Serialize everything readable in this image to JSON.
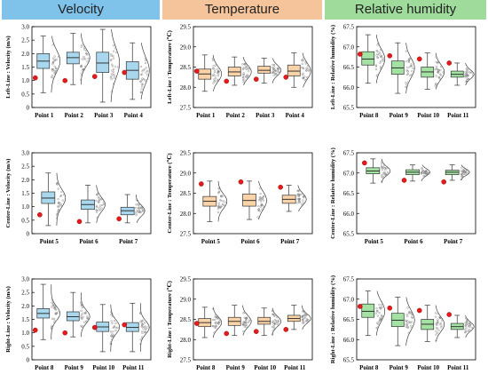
{
  "headers": [
    {
      "label": "Velocity",
      "color": "#7fc3ea"
    },
    {
      "label": "Temperature",
      "color": "#f6c49a"
    },
    {
      "label": "Relative humidity",
      "color": "#9fdc9b"
    }
  ],
  "colors": {
    "velocity": "#a9d8ee",
    "temperature": "#fbd3a8",
    "humidity": "#a4e2a4",
    "marker": "#e41a1c"
  },
  "chart_data": [
    {
      "type": "box",
      "panel": "velocity-left",
      "ylabel": "Left-Line : Velocity (m/s)",
      "ylim": [
        0,
        3.0
      ],
      "yticks": [
        0,
        0.5,
        1.0,
        1.5,
        2.0,
        2.5,
        3.0
      ],
      "ytick_labels": [
        "0",
        "0.5",
        "1.0",
        "1.5",
        "2.0",
        "2.5",
        "3.0"
      ],
      "categories": [
        "Point 1",
        "Point 2",
        "Point 3",
        "Point 4"
      ],
      "boxes": [
        {
          "min": 0.55,
          "q1": 1.45,
          "median": 1.72,
          "q3": 2.0,
          "max": 2.65,
          "marker": 1.1
        },
        {
          "min": 0.85,
          "q1": 1.62,
          "median": 1.85,
          "q3": 2.05,
          "max": 2.75,
          "marker": 1.0
        },
        {
          "min": 0.2,
          "q1": 1.3,
          "median": 1.65,
          "q3": 2.05,
          "max": 2.9,
          "marker": 1.15
        },
        {
          "min": 0.3,
          "q1": 1.05,
          "median": 1.38,
          "q3": 1.7,
          "max": 2.4,
          "marker": 1.3
        }
      ]
    },
    {
      "type": "box",
      "panel": "temperature-left",
      "ylabel": "Left-Line : Temperature (℃)",
      "ylim": [
        27.5,
        29.5
      ],
      "yticks": [
        27.5,
        28.0,
        28.5,
        29.0,
        29.5
      ],
      "ytick_labels": [
        "27.5",
        "28.0",
        "28.5",
        "29.0",
        "29.5"
      ],
      "categories": [
        "Point 1",
        "Point 2",
        "Point 3",
        "Point 4"
      ],
      "boxes": [
        {
          "min": 27.9,
          "q1": 28.2,
          "median": 28.33,
          "q3": 28.45,
          "max": 28.8,
          "marker": 28.4
        },
        {
          "min": 28.05,
          "q1": 28.28,
          "median": 28.38,
          "q3": 28.5,
          "max": 28.75,
          "marker": 28.15
        },
        {
          "min": 28.1,
          "q1": 28.35,
          "median": 28.42,
          "q3": 28.52,
          "max": 28.72,
          "marker": 28.2
        },
        {
          "min": 28.0,
          "q1": 28.28,
          "median": 28.4,
          "q3": 28.55,
          "max": 28.85,
          "marker": 28.25
        }
      ]
    },
    {
      "type": "box",
      "panel": "humidity-left",
      "ylabel": "Left-Line : Relative humidity (%)",
      "ylim": [
        65.5,
        67.5
      ],
      "yticks": [
        65.5,
        66.0,
        66.5,
        67.0,
        67.5
      ],
      "ytick_labels": [
        "65.5",
        "66.0",
        "66.5",
        "67.0",
        "67.5"
      ],
      "categories": [
        "Point 8",
        "Point 9",
        "Point 10",
        "Point 11"
      ],
      "boxes": [
        {
          "min": 66.1,
          "q1": 66.55,
          "median": 66.7,
          "q3": 66.88,
          "max": 67.3,
          "marker": 66.82
        },
        {
          "min": 65.85,
          "q1": 66.32,
          "median": 66.48,
          "q3": 66.65,
          "max": 67.1,
          "marker": 66.78
        },
        {
          "min": 65.95,
          "q1": 66.25,
          "median": 66.38,
          "q3": 66.5,
          "max": 66.85,
          "marker": 66.7
        },
        {
          "min": 66.05,
          "q1": 66.25,
          "median": 66.32,
          "q3": 66.4,
          "max": 66.6,
          "marker": 66.6
        }
      ]
    },
    {
      "type": "box",
      "panel": "velocity-center",
      "ylabel": "Center-Line : Velocity (m/s)",
      "ylim": [
        0,
        3.0
      ],
      "yticks": [
        0,
        0.5,
        1.0,
        1.5,
        2.0,
        2.5,
        3.0
      ],
      "ytick_labels": [
        "0",
        "0.5",
        "1.0",
        "1.5",
        "2.0",
        "2.5",
        "3.0"
      ],
      "categories": [
        "Point 5",
        "Point 6",
        "Point 7"
      ],
      "boxes": [
        {
          "min": 0.3,
          "q1": 1.12,
          "median": 1.32,
          "q3": 1.55,
          "max": 2.25,
          "marker": 0.7
        },
        {
          "min": 0.4,
          "q1": 0.9,
          "median": 1.08,
          "q3": 1.25,
          "max": 1.8,
          "marker": 0.45
        },
        {
          "min": 0.4,
          "q1": 0.7,
          "median": 0.85,
          "q3": 0.98,
          "max": 1.45,
          "marker": 0.55
        }
      ]
    },
    {
      "type": "box",
      "panel": "temperature-center",
      "ylabel": "Center-Line : Temperature (℃)",
      "ylim": [
        27.5,
        29.5
      ],
      "yticks": [
        27.5,
        28.0,
        28.5,
        29.0,
        29.5
      ],
      "ytick_labels": [
        "27.5",
        "28.0",
        "28.5",
        "29.0",
        "29.5"
      ],
      "categories": [
        "Point 5",
        "Point 6",
        "Point 7"
      ],
      "boxes": [
        {
          "min": 27.8,
          "q1": 28.18,
          "median": 28.3,
          "q3": 28.42,
          "max": 28.8,
          "marker": 28.73
        },
        {
          "min": 27.85,
          "q1": 28.18,
          "median": 28.32,
          "q3": 28.48,
          "max": 28.8,
          "marker": 28.78
        },
        {
          "min": 28.05,
          "q1": 28.25,
          "median": 28.35,
          "q3": 28.45,
          "max": 28.7,
          "marker": 28.65
        }
      ]
    },
    {
      "type": "box",
      "panel": "humidity-center",
      "ylabel": "Center-Line : Relative humidity (%)",
      "ylim": [
        65.5,
        67.5
      ],
      "yticks": [
        65.5,
        66.0,
        66.5,
        67.0,
        67.5
      ],
      "ytick_labels": [
        "65.5",
        "66.0",
        "66.5",
        "67.0",
        "67.5"
      ],
      "categories": [
        "Point 5",
        "Point 6",
        "Point 7"
      ],
      "boxes": [
        {
          "min": 66.75,
          "q1": 66.98,
          "median": 67.05,
          "q3": 67.13,
          "max": 67.35,
          "marker": 67.25
        },
        {
          "min": 66.8,
          "q1": 66.96,
          "median": 67.02,
          "q3": 67.08,
          "max": 67.2,
          "marker": 66.82
        },
        {
          "min": 66.82,
          "q1": 66.96,
          "median": 67.02,
          "q3": 67.07,
          "max": 67.2,
          "marker": 66.78
        }
      ]
    },
    {
      "type": "box",
      "panel": "velocity-right",
      "ylabel": "Right-Line : Velocity (m/s)",
      "ylim": [
        0,
        3.0
      ],
      "yticks": [
        0,
        0.5,
        1.0,
        1.5,
        2.0,
        2.5,
        3.0
      ],
      "ytick_labels": [
        "0",
        "0.5",
        "1.0",
        "1.5",
        "2.0",
        "2.5",
        "3.0"
      ],
      "categories": [
        "Point 8",
        "Point 9",
        "Point 10",
        "Point 11"
      ],
      "boxes": [
        {
          "min": 0.75,
          "q1": 1.55,
          "median": 1.72,
          "q3": 1.9,
          "max": 2.8,
          "marker": 1.1
        },
        {
          "min": 0.85,
          "q1": 1.45,
          "median": 1.6,
          "q3": 1.78,
          "max": 2.5,
          "marker": 1.0
        },
        {
          "min": 0.3,
          "q1": 1.05,
          "median": 1.22,
          "q3": 1.4,
          "max": 2.05,
          "marker": 1.2
        },
        {
          "min": 0.3,
          "q1": 1.05,
          "median": 1.2,
          "q3": 1.38,
          "max": 2.1,
          "marker": 1.3
        }
      ]
    },
    {
      "type": "box",
      "panel": "temperature-right",
      "ylabel": "Right-Line : Temperature (℃)",
      "ylim": [
        27.5,
        29.5
      ],
      "yticks": [
        27.5,
        28.0,
        28.5,
        29.0,
        29.5
      ],
      "ytick_labels": [
        "27.5",
        "28.0",
        "28.5",
        "29.0",
        "29.5"
      ],
      "categories": [
        "Point 8",
        "Point 9",
        "Point 10",
        "Point 11"
      ],
      "boxes": [
        {
          "min": 28.05,
          "q1": 28.32,
          "median": 28.42,
          "q3": 28.52,
          "max": 28.8,
          "marker": 28.4
        },
        {
          "min": 28.1,
          "q1": 28.35,
          "median": 28.45,
          "q3": 28.55,
          "max": 28.85,
          "marker": 28.15
        },
        {
          "min": 28.1,
          "q1": 28.38,
          "median": 28.45,
          "q3": 28.55,
          "max": 28.78,
          "marker": 28.2
        },
        {
          "min": 28.25,
          "q1": 28.45,
          "median": 28.52,
          "q3": 28.6,
          "max": 28.85,
          "marker": 28.25
        }
      ]
    },
    {
      "type": "box",
      "panel": "humidity-right",
      "ylabel": "Right-Line : Relative humidity (%)",
      "ylim": [
        65.5,
        67.5
      ],
      "yticks": [
        65.5,
        66.0,
        66.5,
        67.0,
        67.5
      ],
      "ytick_labels": [
        "65.5",
        "66.0",
        "66.5",
        "67.0",
        "67.5"
      ],
      "categories": [
        "Point 8",
        "Point 9",
        "Point 10",
        "Point 11"
      ],
      "boxes": [
        {
          "min": 66.1,
          "q1": 66.55,
          "median": 66.7,
          "q3": 66.88,
          "max": 67.2,
          "marker": 66.82
        },
        {
          "min": 65.85,
          "q1": 66.32,
          "median": 66.48,
          "q3": 66.65,
          "max": 67.05,
          "marker": 66.78
        },
        {
          "min": 65.95,
          "q1": 66.25,
          "median": 66.38,
          "q3": 66.5,
          "max": 66.85,
          "marker": 66.72
        },
        {
          "min": 66.05,
          "q1": 66.25,
          "median": 66.32,
          "q3": 66.4,
          "max": 66.6,
          "marker": 66.62
        }
      ]
    }
  ]
}
